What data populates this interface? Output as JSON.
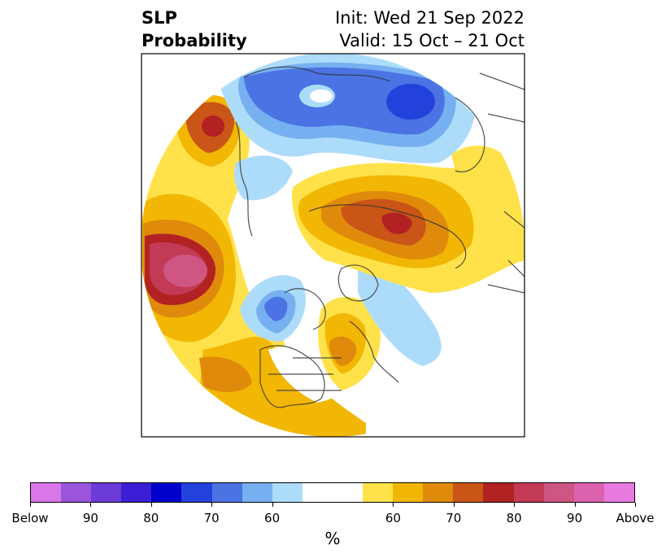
{
  "title": {
    "left_line1": "SLP",
    "left_line2": "Probability",
    "right_line1": "Init: Wed 21 Sep 2022",
    "right_line2": "Valid: 15 Oct – 21 Oct"
  },
  "colorbar": {
    "colors": [
      "#d977e8",
      "#9b55dd",
      "#6c3bd8",
      "#3a1fd6",
      "#0000cc",
      "#2342dc",
      "#4b73e3",
      "#77b0f0",
      "#addcfa",
      "#ffffff",
      "#ffffff",
      "#ffe24a",
      "#f2b705",
      "#e08a0b",
      "#c95516",
      "#b22222",
      "#c23a55",
      "#cf5583",
      "#dd62ad",
      "#e87ae0"
    ],
    "tick_labels": [
      "Below",
      "90",
      "80",
      "70",
      "60",
      "60",
      "70",
      "80",
      "90",
      "Above"
    ],
    "unit": "%"
  }
}
